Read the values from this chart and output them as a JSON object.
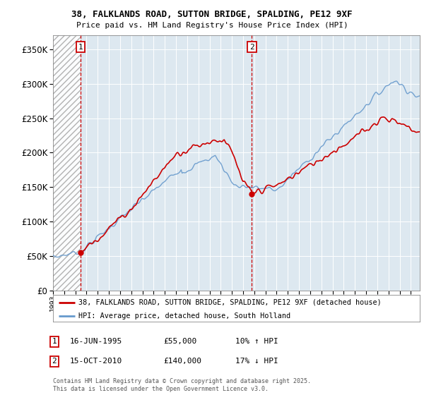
{
  "title_line1": "38, FALKLANDS ROAD, SUTTON BRIDGE, SPALDING, PE12 9XF",
  "title_line2": "Price paid vs. HM Land Registry's House Price Index (HPI)",
  "ylim": [
    0,
    370000
  ],
  "yticks": [
    0,
    50000,
    100000,
    150000,
    200000,
    250000,
    300000,
    350000
  ],
  "xlim_left": 1993.0,
  "xlim_right": 2025.8,
  "sale1_date": 1995.46,
  "sale1_price": 55000,
  "sale2_date": 2010.79,
  "sale2_price": 140000,
  "legend_line1": "38, FALKLANDS ROAD, SUTTON BRIDGE, SPALDING, PE12 9XF (detached house)",
  "legend_line2": "HPI: Average price, detached house, South Holland",
  "footer": "Contains HM Land Registry data © Crown copyright and database right 2025.\nThis data is licensed under the Open Government Licence v3.0.",
  "line_color_red": "#cc0000",
  "line_color_blue": "#6699cc",
  "background_color": "#ffffff",
  "plot_bg_color": "#dde8f0"
}
